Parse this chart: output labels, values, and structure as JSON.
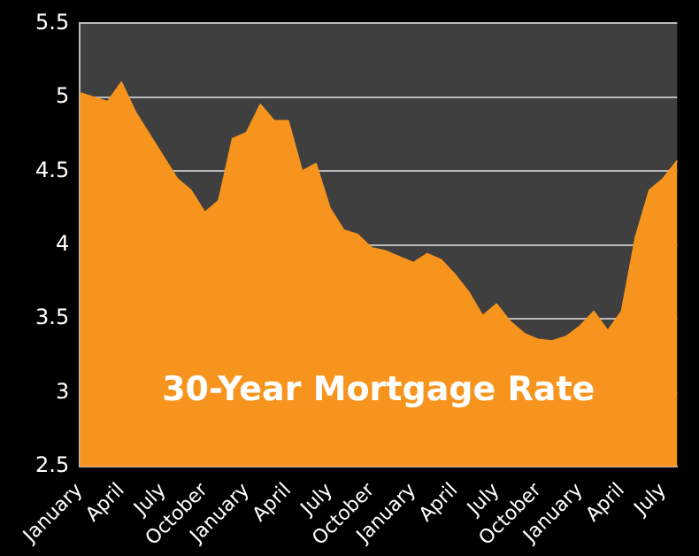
{
  "chart_data": {
    "type": "area",
    "title": "30-Year Mortgage Rate",
    "categories": [
      "January",
      null,
      null,
      "April",
      null,
      null,
      "July",
      null,
      null,
      "October",
      null,
      null,
      "January",
      null,
      null,
      "April",
      null,
      null,
      "July",
      null,
      null,
      "October",
      null,
      null,
      "January",
      null,
      null,
      "April",
      null,
      null,
      "July",
      null,
      null,
      "October",
      null,
      null,
      "January",
      null,
      null,
      "April",
      null,
      null,
      "July",
      null
    ],
    "series": [
      {
        "color": "#f7941d",
        "values": [
          5.03,
          5.0,
          4.97,
          5.1,
          4.9,
          4.75,
          4.6,
          4.45,
          4.37,
          4.22,
          4.3,
          4.72,
          4.76,
          4.95,
          4.84,
          4.84,
          4.5,
          4.55,
          4.25,
          4.1,
          4.07,
          3.98,
          3.96,
          3.92,
          3.88,
          3.94,
          3.9,
          3.8,
          3.68,
          3.52,
          3.6,
          3.48,
          3.4,
          3.36,
          3.35,
          3.38,
          3.45,
          3.55,
          3.42,
          3.55,
          4.05,
          4.37,
          4.45,
          4.57
        ]
      }
    ],
    "ylim": [
      2.5,
      5.5
    ],
    "yticks": [
      2.5,
      3,
      3.5,
      4,
      4.5,
      5,
      5.5
    ],
    "grid": "y",
    "legend": false,
    "marker": "none"
  }
}
